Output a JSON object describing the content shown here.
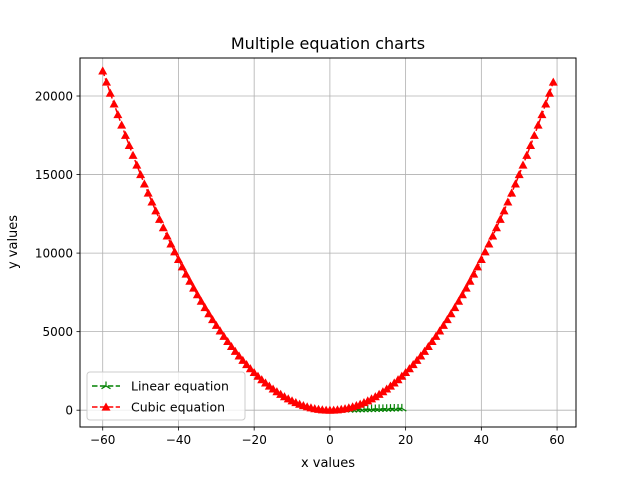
{
  "chart_data": {
    "type": "line",
    "title": "Multiple equation charts",
    "xlabel": "x values",
    "ylabel": "y values",
    "xlim": [
      -66,
      65
    ],
    "ylim": [
      -1070,
      22420
    ],
    "xticks": [
      -60,
      -40,
      -20,
      0,
      20,
      40,
      60
    ],
    "yticks": [
      0,
      5000,
      10000,
      15000,
      20000
    ],
    "grid": true,
    "legend_position": "lower-left",
    "series": [
      {
        "name": "Linear equation",
        "color": "#008000",
        "linestyle": "dashed",
        "marker": "tri_up",
        "equation": "y = 6x + 2",
        "x_range": [
          5,
          19
        ]
      },
      {
        "name": "Cubic equation",
        "color": "#ff0000",
        "linestyle": "dashed",
        "marker": "triangle_up",
        "equation": "y = 6x^2 + 2",
        "x_range": [
          -60,
          59
        ]
      }
    ]
  }
}
